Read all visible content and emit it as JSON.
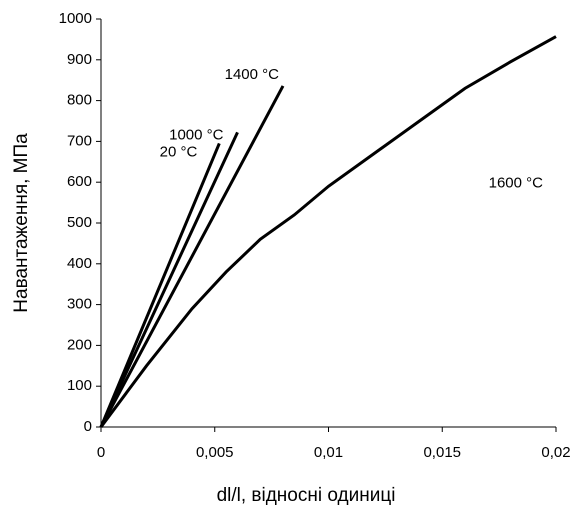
{
  "chart_data": {
    "type": "line",
    "x_label": "dl/l, відносні  одиниці",
    "y_label": "Навантаження, МПа",
    "xlim": [
      0,
      0.02
    ],
    "xticks": [
      0,
      {
        "value": 0.005,
        "label": "0,005"
      },
      {
        "value": 0.01,
        "label": "0,01"
      },
      {
        "value": 0.015,
        "label": "0,015"
      },
      {
        "value": 0.02,
        "label": "0,02"
      }
    ],
    "ylim": [
      0,
      1000
    ],
    "yticks": [
      0,
      100,
      200,
      300,
      400,
      500,
      600,
      700,
      800,
      900,
      1000
    ],
    "series": [
      {
        "name": "20 °C",
        "color": "#000000",
        "x": [
          0,
          0.0052
        ],
        "values": [
          0,
          695
        ]
      },
      {
        "name": "1000 °C",
        "color": "#000000",
        "x": [
          0,
          0.006
        ],
        "values": [
          0,
          722
        ]
      },
      {
        "name": "1400 °C",
        "color": "#000000",
        "x": [
          0,
          0.008
        ],
        "values": [
          0,
          836
        ]
      },
      {
        "name": "1600 °C",
        "color": "#000000",
        "x": [
          0,
          0.002,
          0.004,
          0.0055,
          0.007,
          0.0085,
          0.01,
          0.012,
          0.014,
          0.016,
          0.018,
          0.02
        ],
        "values": [
          0,
          150,
          290,
          380,
          460,
          520,
          590,
          670,
          750,
          830,
          895,
          957
        ]
      }
    ]
  }
}
